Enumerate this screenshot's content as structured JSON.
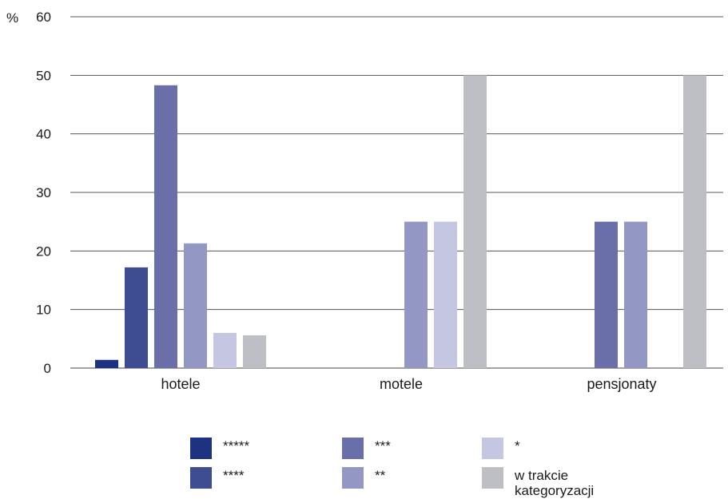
{
  "chart_data": {
    "type": "bar",
    "ylabel": "%",
    "ylim": [
      0,
      60
    ],
    "yticks": [
      "0",
      "10",
      "20",
      "30",
      "40",
      "50",
      "60"
    ],
    "grid": true,
    "legend_position": "bottom",
    "categories": [
      "hotele",
      "motele",
      "pensjonaty"
    ],
    "series": [
      {
        "name": "*****",
        "color": "#1e3282",
        "values": [
          1.4,
          0,
          0
        ]
      },
      {
        "name": "****",
        "color": "#3e4d92",
        "values": [
          17.2,
          0,
          0
        ]
      },
      {
        "name": "***",
        "color": "#6a6fa9",
        "values": [
          48.3,
          0,
          25
        ]
      },
      {
        "name": "**",
        "color": "#9297c3",
        "values": [
          21.3,
          25,
          25
        ]
      },
      {
        "name": "*",
        "color": "#c4c6e2",
        "values": [
          6,
          25,
          0
        ]
      },
      {
        "name": "w trakcie kategoryzacji",
        "color": "#bebfc4",
        "values": [
          5.6,
          50,
          50
        ]
      }
    ]
  }
}
